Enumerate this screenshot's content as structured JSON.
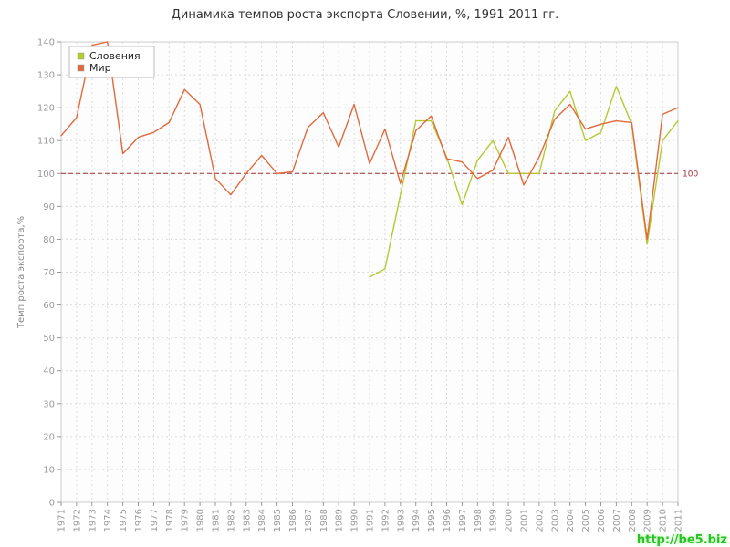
{
  "watermark": "http://be5.biz",
  "chart_data": {
    "type": "line",
    "title": "Динамика темпов роста экспорта Словении, %, 1991-2011 гг.",
    "xlabel": "",
    "ylabel": "Темп роста экспорта,%",
    "ylim": [
      0,
      140
    ],
    "ytick_step": 10,
    "grid": true,
    "legend_position": "top-left",
    "reference_line": {
      "value": 100,
      "label": "100",
      "color": "#a03038",
      "style": "dashed"
    },
    "x": [
      1971,
      1972,
      1973,
      1974,
      1975,
      1976,
      1977,
      1978,
      1979,
      1980,
      1981,
      1982,
      1983,
      1984,
      1985,
      1986,
      1987,
      1988,
      1989,
      1990,
      1991,
      1992,
      1993,
      1994,
      1995,
      1996,
      1997,
      1998,
      1999,
      2000,
      2001,
      2002,
      2003,
      2004,
      2005,
      2006,
      2007,
      2008,
      2009,
      2010,
      2011
    ],
    "series": [
      {
        "name": "Словения",
        "color": "#b6c832",
        "values": [
          null,
          null,
          null,
          null,
          null,
          null,
          null,
          null,
          null,
          null,
          null,
          null,
          null,
          null,
          null,
          null,
          null,
          null,
          null,
          null,
          68.5,
          71,
          93.5,
          116,
          116,
          105,
          90.5,
          104,
          110,
          100,
          100,
          100,
          119,
          125,
          110,
          112.5,
          126.5,
          115,
          78.5,
          110,
          116
        ]
      },
      {
        "name": "Мир",
        "color": "#e2693c",
        "values": [
          111.5,
          117,
          139,
          140,
          106,
          111,
          112.5,
          115.5,
          125.5,
          121,
          98.5,
          93.5,
          100,
          105.5,
          100,
          100.5,
          114,
          118.5,
          108,
          121,
          103,
          113.5,
          97,
          113,
          117.5,
          104.5,
          103.5,
          98.5,
          101,
          111,
          96.5,
          105,
          116.5,
          121,
          113.5,
          115,
          116,
          115.5,
          80,
          118,
          120
        ]
      }
    ]
  }
}
